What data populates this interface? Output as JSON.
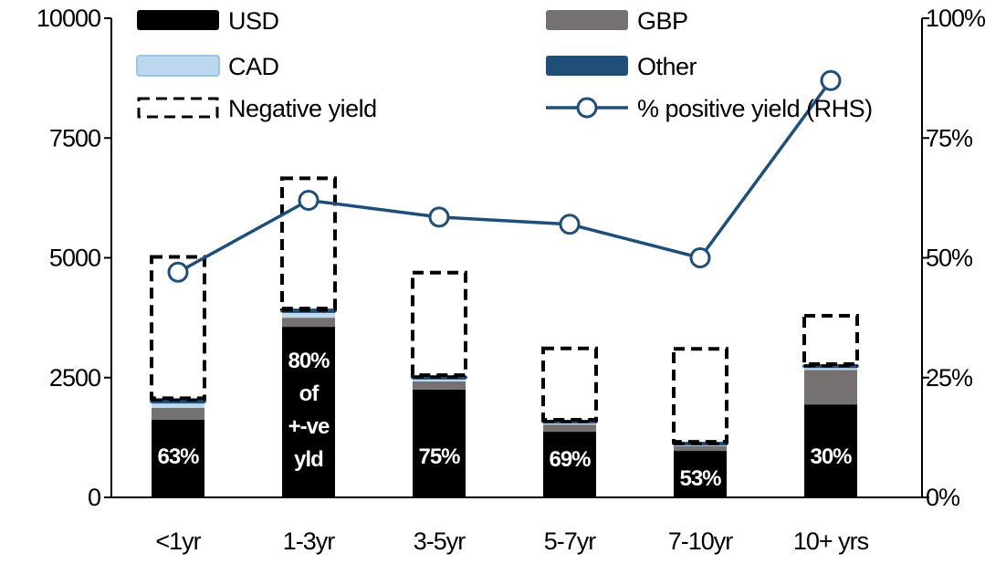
{
  "chart_data": {
    "type": "bar",
    "stacked": true,
    "categories": [
      "<1yr",
      "1-3yr",
      "3-5yr",
      "5-7yr",
      "7-10yr",
      "10+ yrs"
    ],
    "series": [
      {
        "name": "USD",
        "color": "#000000",
        "values": [
          1620,
          3560,
          2250,
          1370,
          970,
          1940
        ]
      },
      {
        "name": "GBP",
        "color": "#767171",
        "values": [
          250,
          190,
          170,
          150,
          100,
          720
        ]
      },
      {
        "name": "CAD",
        "color": "#bdd7ee",
        "values": [
          90,
          100,
          40,
          40,
          40,
          40
        ]
      },
      {
        "name": "Other",
        "color": "#1f4e79",
        "values": [
          110,
          90,
          90,
          60,
          50,
          80
        ]
      },
      {
        "name": "Negative yield",
        "style": "dashed-outline",
        "values": [
          2950,
          2720,
          2140,
          1490,
          1940,
          1010
        ]
      }
    ],
    "line_series": {
      "name": "% positive yield (RHS)",
      "color": "#1f4e79",
      "axis": "right",
      "values": [
        47,
        62,
        58.5,
        57,
        50,
        87
      ]
    },
    "data_labels": [
      "63%",
      "80%\nof\n+-ve\nyld",
      "75%",
      "69%",
      "53%",
      "30%"
    ],
    "y_left": {
      "ylim": [
        0,
        10000
      ],
      "ticks": [
        "0",
        "2500",
        "5000",
        "7500",
        "10000"
      ]
    },
    "y_right": {
      "ylim": [
        0,
        100
      ],
      "ticks": [
        "0%",
        "25%",
        "50%",
        "75%",
        "100%"
      ]
    },
    "legend_placement": "top",
    "grid": false
  }
}
